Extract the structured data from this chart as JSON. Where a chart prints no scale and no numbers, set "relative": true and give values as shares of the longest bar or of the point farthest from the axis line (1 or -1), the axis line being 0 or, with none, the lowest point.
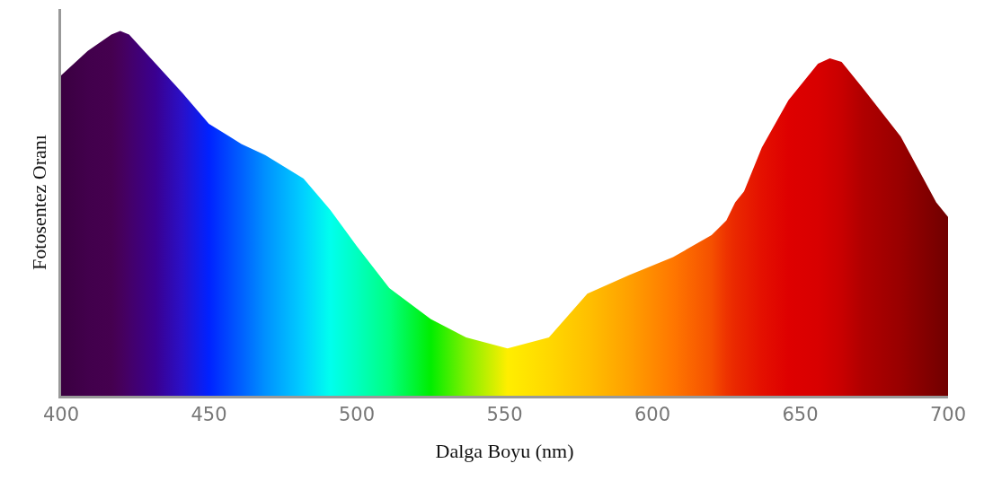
{
  "chart_data": {
    "type": "area",
    "xlabel": "Dalga Boyu (nm)",
    "ylabel": "Fotosentez Oranı",
    "relative": true,
    "x": [
      400,
      409,
      417,
      420,
      423,
      432,
      441,
      450,
      461,
      469,
      482,
      491,
      500,
      511,
      525,
      537,
      551,
      565,
      578,
      592,
      607,
      620,
      625,
      628,
      631,
      637,
      646,
      656,
      660,
      664,
      671,
      684,
      696,
      700
    ],
    "values": [
      0.878,
      0.945,
      0.99,
      1.0,
      0.99,
      0.91,
      0.83,
      0.745,
      0.69,
      0.66,
      0.595,
      0.51,
      0.41,
      0.295,
      0.21,
      0.16,
      0.13,
      0.16,
      0.28,
      0.33,
      0.38,
      0.44,
      0.48,
      0.53,
      0.56,
      0.68,
      0.81,
      0.91,
      0.925,
      0.915,
      0.845,
      0.71,
      0.53,
      0.49
    ],
    "colors": [
      "#3a0040",
      "#42004c",
      "#45004f",
      "#46005a",
      "#440068",
      "#3a0090",
      "#2a10c8",
      "#0022ff",
      "#0060ff",
      "#0090ff",
      "#00d0ff",
      "#00ffee",
      "#00ffc0",
      "#00ff80",
      "#00ee00",
      "#80f000",
      "#ffee00",
      "#ffd800",
      "#ffc000",
      "#ffa000",
      "#ff7700",
      "#f55000",
      "#ee3300",
      "#ea2800",
      "#e82000",
      "#e41000",
      "#de0000",
      "#d80000",
      "#d00000",
      "#c80000",
      "#b00000",
      "#980000",
      "#7a0000",
      "#700000"
    ],
    "xlim": [
      400,
      700
    ],
    "xticks": [
      400,
      450,
      500,
      550,
      600,
      650,
      700
    ]
  }
}
